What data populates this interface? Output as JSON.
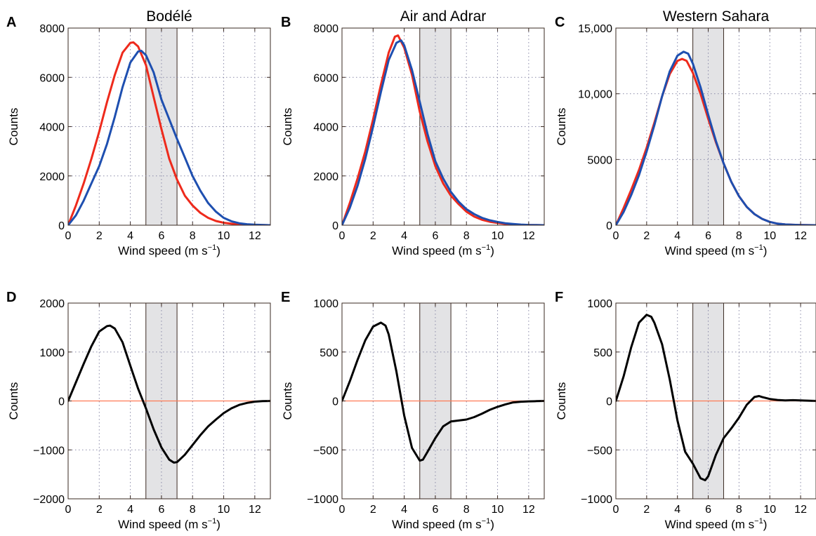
{
  "figure": {
    "colors": {
      "band": "#e3e3e5",
      "zero_line": "#ff7a55",
      "frame": "#3a2a22",
      "grid": "#8a8aa8"
    }
  },
  "chart_data": [
    {
      "panel": "A",
      "title": "Bodélé",
      "type": "line",
      "xlabel": "Wind speed (m s−1)",
      "xlabel_main": "Wind speed (m s",
      "xlabel_sup": "−1",
      "xlabel_end": ")",
      "ylabel": "Counts",
      "xlim": [
        0,
        13
      ],
      "ylim": [
        0,
        8000
      ],
      "xticks": [
        0,
        2,
        4,
        6,
        8,
        10,
        12
      ],
      "yticks": [
        0,
        2000,
        4000,
        6000,
        8000
      ],
      "ytick_labels": [
        "0",
        "2000",
        "4000",
        "6000",
        "8000"
      ],
      "grid": true,
      "shaded_band": [
        5,
        7
      ],
      "series": [
        {
          "color": "#ee2a1c",
          "x": [
            0,
            0.5,
            1,
            1.5,
            2,
            2.5,
            3,
            3.5,
            4,
            4.2,
            4.5,
            5,
            5.5,
            6,
            6.5,
            7,
            7.5,
            8,
            8.5,
            9,
            9.5,
            10,
            10.5,
            11,
            11.5,
            12,
            12.5,
            13
          ],
          "y": [
            0,
            800,
            1700,
            2700,
            3800,
            5000,
            6100,
            7000,
            7400,
            7420,
            7250,
            6500,
            5200,
            3900,
            2700,
            1850,
            1200,
            800,
            500,
            300,
            170,
            100,
            60,
            30,
            15,
            8,
            4,
            0
          ]
        },
        {
          "color": "#1e4fb0",
          "x": [
            0,
            0.5,
            1,
            1.5,
            2,
            2.5,
            3,
            3.5,
            4,
            4.5,
            4.7,
            5,
            5.5,
            6,
            6.5,
            7,
            7.5,
            8,
            8.5,
            9,
            9.5,
            10,
            10.5,
            11,
            11.5,
            12,
            12.5,
            13
          ],
          "y": [
            0,
            400,
            1000,
            1700,
            2400,
            3300,
            4400,
            5600,
            6600,
            7050,
            7080,
            6900,
            6200,
            5100,
            4300,
            3500,
            2750,
            2000,
            1400,
            900,
            550,
            300,
            160,
            80,
            40,
            20,
            10,
            0
          ]
        }
      ]
    },
    {
      "panel": "B",
      "title": "Air and Adrar",
      "type": "line",
      "xlabel": "Wind speed (m s−1)",
      "xlabel_main": "Wind speed (m s",
      "xlabel_sup": "−1",
      "xlabel_end": ")",
      "ylabel": "Counts",
      "xlim": [
        0,
        13
      ],
      "ylim": [
        0,
        8000
      ],
      "xticks": [
        0,
        2,
        4,
        6,
        8,
        10,
        12
      ],
      "yticks": [
        0,
        2000,
        4000,
        6000,
        8000
      ],
      "ytick_labels": [
        "0",
        "2000",
        "4000",
        "6000",
        "8000"
      ],
      "grid": true,
      "shaded_band": [
        5,
        7
      ],
      "series": [
        {
          "color": "#ee2a1c",
          "x": [
            0,
            0.5,
            1,
            1.5,
            2,
            2.5,
            3,
            3.4,
            3.6,
            4,
            4.5,
            5,
            5.5,
            6,
            6.5,
            7,
            7.5,
            8,
            8.5,
            9,
            9.5,
            10,
            10.5,
            11,
            11.5,
            12,
            12.5,
            13
          ],
          "y": [
            0,
            900,
            1900,
            3000,
            4300,
            5700,
            7000,
            7650,
            7700,
            7200,
            6100,
            4600,
            3400,
            2400,
            1700,
            1200,
            850,
            550,
            350,
            220,
            140,
            90,
            55,
            30,
            15,
            8,
            4,
            0
          ]
        },
        {
          "color": "#1e4fb0",
          "x": [
            0,
            0.5,
            1,
            1.5,
            2,
            2.5,
            3,
            3.5,
            3.8,
            4,
            4.5,
            5,
            5.5,
            6,
            6.5,
            7,
            7.5,
            8,
            8.5,
            9,
            9.5,
            10,
            10.5,
            11,
            11.5,
            12,
            12.5,
            13
          ],
          "y": [
            0,
            700,
            1600,
            2700,
            4000,
            5400,
            6700,
            7400,
            7500,
            7300,
            6300,
            5000,
            3700,
            2600,
            1900,
            1350,
            950,
            650,
            450,
            300,
            200,
            130,
            80,
            50,
            25,
            12,
            6,
            0
          ]
        }
      ]
    },
    {
      "panel": "C",
      "title": "Western Sahara",
      "type": "line",
      "xlabel": "Wind speed (m s−1)",
      "xlabel_main": "Wind speed (m s",
      "xlabel_sup": "−1",
      "xlabel_end": ")",
      "ylabel": "Counts",
      "xlim": [
        0,
        13
      ],
      "ylim": [
        0,
        15000
      ],
      "xticks": [
        0,
        2,
        4,
        6,
        8,
        10,
        12
      ],
      "yticks": [
        0,
        5000,
        10000,
        15000
      ],
      "ytick_labels": [
        "0",
        "5000",
        "10,000",
        "15,000"
      ],
      "grid": true,
      "shaded_band": [
        5,
        7
      ],
      "series": [
        {
          "color": "#ee2a1c",
          "x": [
            0,
            0.5,
            1,
            1.5,
            2,
            2.5,
            3,
            3.5,
            4,
            4.3,
            4.6,
            5,
            5.5,
            6,
            6.5,
            7,
            7.5,
            8,
            8.5,
            9,
            9.5,
            10,
            10.5,
            11,
            11.5,
            12,
            12.5,
            13
          ],
          "y": [
            0,
            1300,
            2700,
            4200,
            5900,
            7800,
            9800,
            11500,
            12500,
            12650,
            12500,
            11600,
            10000,
            8100,
            6300,
            4700,
            3300,
            2200,
            1400,
            850,
            480,
            250,
            120,
            60,
            30,
            15,
            7,
            0
          ]
        },
        {
          "color": "#1e4fb0",
          "x": [
            0,
            0.5,
            1,
            1.5,
            2,
            2.5,
            3,
            3.5,
            4,
            4.4,
            4.7,
            5,
            5.5,
            6,
            6.5,
            7,
            7.5,
            8,
            8.5,
            9,
            9.5,
            10,
            10.5,
            11,
            11.5,
            12,
            12.5,
            13
          ],
          "y": [
            0,
            1000,
            2300,
            3800,
            5600,
            7600,
            9800,
            11700,
            12900,
            13200,
            13050,
            12300,
            10500,
            8400,
            6400,
            4700,
            3300,
            2200,
            1400,
            850,
            480,
            250,
            120,
            60,
            30,
            15,
            7,
            0
          ]
        }
      ]
    },
    {
      "panel": "D",
      "title": "",
      "type": "line",
      "xlabel": "Wind speed (m s−1)",
      "xlabel_main": "Wind speed (m s",
      "xlabel_sup": "−1",
      "xlabel_end": ")",
      "ylabel": "Counts",
      "xlim": [
        0,
        13
      ],
      "ylim": [
        -2000,
        2000
      ],
      "xticks": [
        0,
        2,
        4,
        6,
        8,
        10,
        12
      ],
      "yticks": [
        -2000,
        -1000,
        0,
        1000,
        2000
      ],
      "ytick_labels": [
        "−2000",
        "−1000",
        "0",
        "1000",
        "2000"
      ],
      "grid": true,
      "shaded_band": [
        5,
        7
      ],
      "zero_line": true,
      "series": [
        {
          "color": "#000000",
          "x": [
            0,
            0.5,
            1,
            1.5,
            2,
            2.5,
            2.7,
            3,
            3.5,
            4,
            4.5,
            5,
            5.5,
            6,
            6.5,
            6.8,
            7,
            7.5,
            8,
            8.5,
            9,
            9.5,
            10,
            10.5,
            11,
            11.5,
            12,
            12.5,
            13
          ],
          "y": [
            0,
            380,
            760,
            1120,
            1420,
            1530,
            1540,
            1480,
            1200,
            720,
            250,
            -150,
            -580,
            -950,
            -1200,
            -1260,
            -1250,
            -1100,
            -900,
            -700,
            -520,
            -380,
            -250,
            -150,
            -80,
            -40,
            -15,
            -5,
            0
          ]
        }
      ]
    },
    {
      "panel": "E",
      "title": "",
      "type": "line",
      "xlabel": "Wind speed (m s−1)",
      "xlabel_main": "Wind speed (m s",
      "xlabel_sup": "−1",
      "xlabel_end": ")",
      "ylabel": "Counts",
      "xlim": [
        0,
        13
      ],
      "ylim": [
        -1000,
        1000
      ],
      "xticks": [
        0,
        2,
        4,
        6,
        8,
        10,
        12
      ],
      "yticks": [
        -1000,
        -500,
        0,
        500,
        1000
      ],
      "ytick_labels": [
        "−1000",
        "−500",
        "0",
        "500",
        "1000"
      ],
      "grid": true,
      "shaded_band": [
        5,
        7
      ],
      "zero_line": true,
      "series": [
        {
          "color": "#000000",
          "x": [
            0,
            0.5,
            1,
            1.5,
            2,
            2.5,
            2.8,
            3,
            3.5,
            4,
            4.5,
            5,
            5.2,
            5.5,
            6,
            6.5,
            7,
            7.5,
            8,
            8.5,
            9,
            9.5,
            10,
            10.5,
            11,
            11.5,
            12,
            12.5,
            13
          ],
          "y": [
            0,
            200,
            420,
            620,
            760,
            800,
            770,
            680,
            300,
            -150,
            -480,
            -610,
            -600,
            -520,
            -380,
            -260,
            -210,
            -200,
            -190,
            -165,
            -130,
            -90,
            -60,
            -35,
            -15,
            -8,
            -4,
            -2,
            0
          ]
        }
      ]
    },
    {
      "panel": "F",
      "title": "",
      "type": "line",
      "xlabel": "Wind speed (m s−1)",
      "xlabel_main": "Wind speed (m s",
      "xlabel_sup": "−1",
      "xlabel_end": ")",
      "ylabel": "Counts",
      "xlim": [
        0,
        13
      ],
      "ylim": [
        -1000,
        1000
      ],
      "xticks": [
        0,
        2,
        4,
        6,
        8,
        10,
        12
      ],
      "yticks": [
        -1000,
        -500,
        0,
        500,
        1000
      ],
      "ytick_labels": [
        "−1000",
        "−500",
        "0",
        "500",
        "1000"
      ],
      "grid": true,
      "shaded_band": [
        5,
        7
      ],
      "zero_line": true,
      "series": [
        {
          "color": "#000000",
          "x": [
            0,
            0.5,
            1,
            1.5,
            2,
            2.3,
            2.5,
            3,
            3.5,
            4,
            4.5,
            5,
            5.5,
            5.8,
            6,
            6.5,
            7,
            7.5,
            8,
            8.5,
            9,
            9.3,
            9.5,
            10,
            10.5,
            11,
            11.5,
            12,
            12.5,
            13
          ],
          "y": [
            0,
            250,
            550,
            800,
            880,
            860,
            800,
            580,
            220,
            -200,
            -520,
            -640,
            -790,
            -810,
            -770,
            -550,
            -380,
            -280,
            -170,
            -40,
            40,
            50,
            40,
            20,
            10,
            5,
            8,
            5,
            3,
            0
          ]
        }
      ]
    }
  ]
}
